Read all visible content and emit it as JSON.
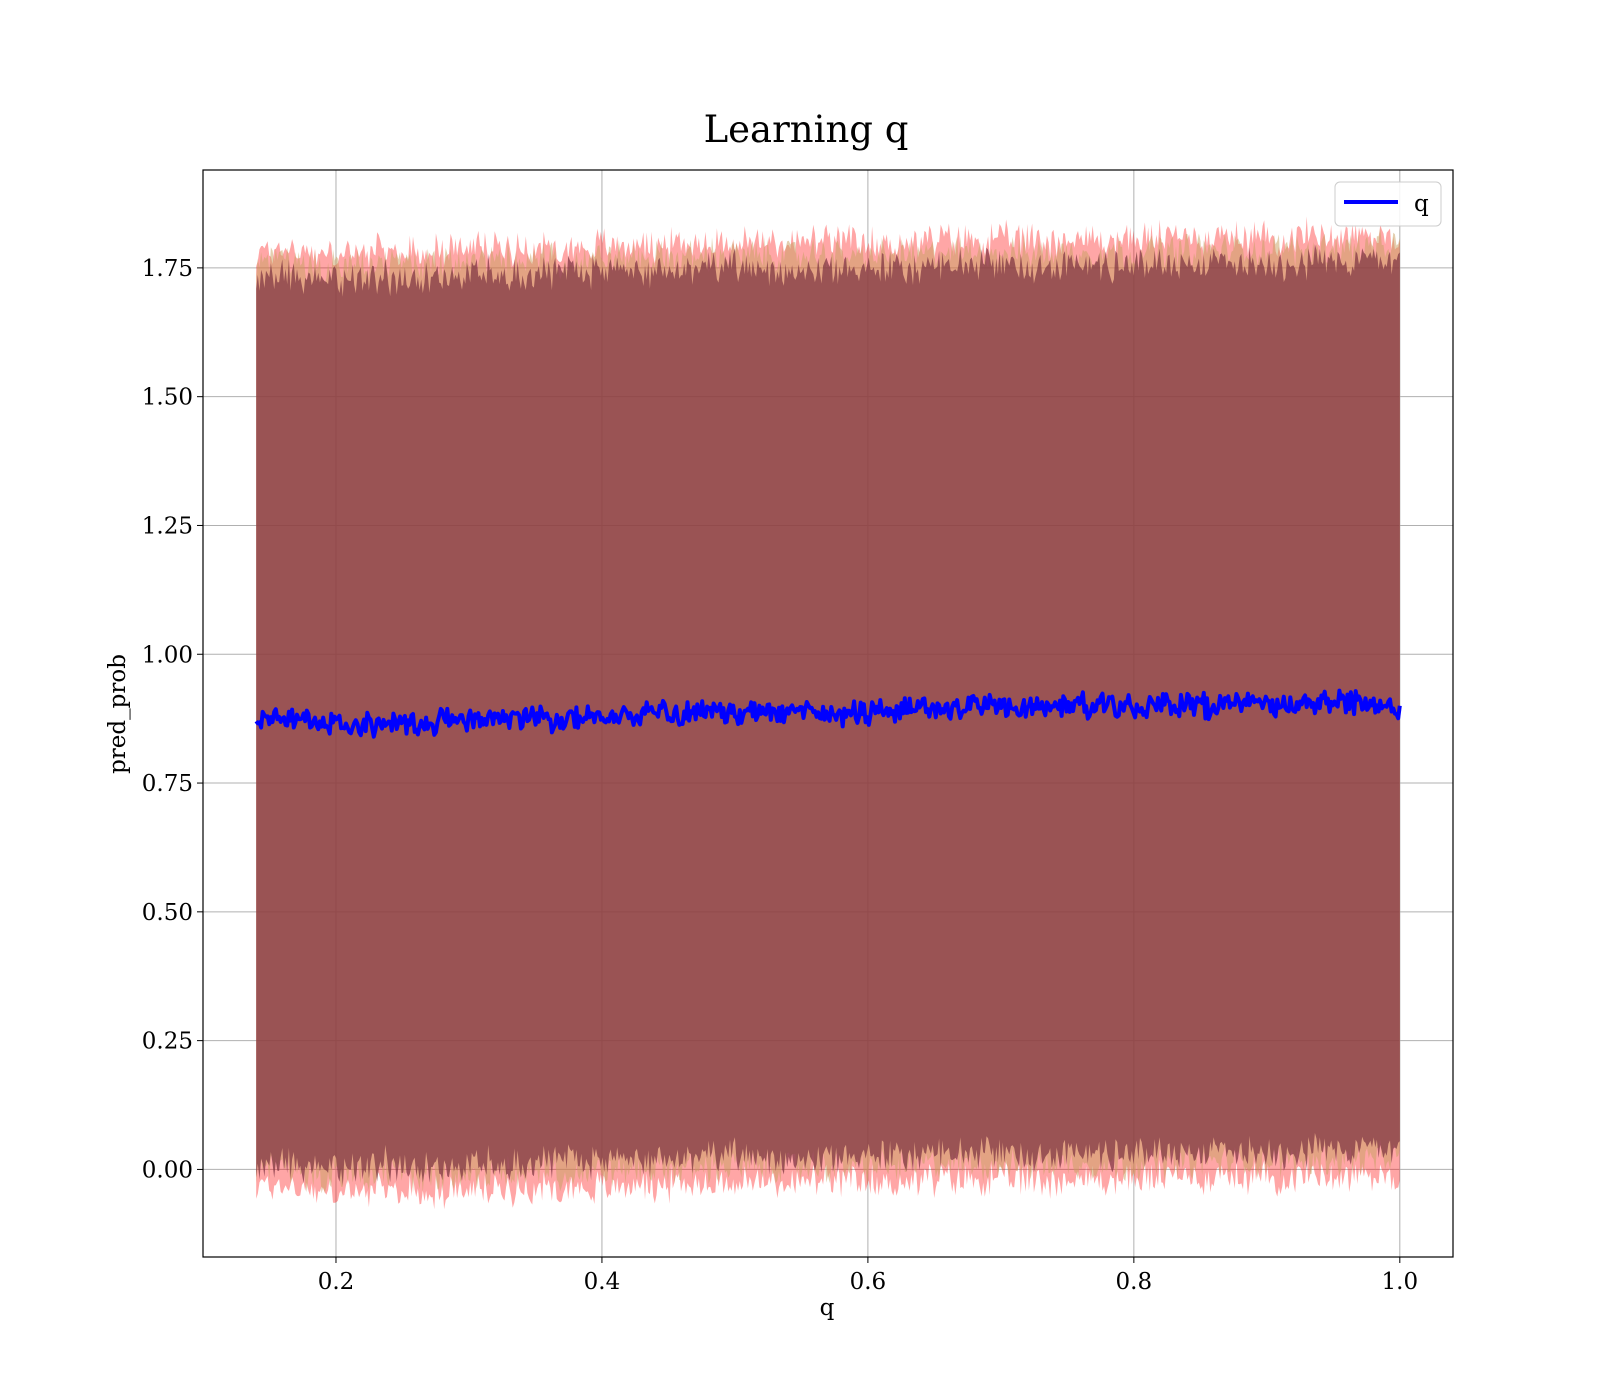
{
  "chart_data": {
    "type": "line",
    "title": "Learning q",
    "xlabel": "q",
    "ylabel": "pred_prob",
    "xlim": [
      0.1,
      1.04
    ],
    "ylim": [
      -0.17,
      1.94
    ],
    "x_ticks": [
      {
        "value": 0.2,
        "label": "0.2"
      },
      {
        "value": 0.4,
        "label": "0.4"
      },
      {
        "value": 0.6,
        "label": "0.6"
      },
      {
        "value": 0.8,
        "label": "0.8"
      },
      {
        "value": 1.0,
        "label": "1.0"
      }
    ],
    "y_ticks": [
      {
        "value": 0.0,
        "label": "0.00"
      },
      {
        "value": 0.25,
        "label": "0.25"
      },
      {
        "value": 0.5,
        "label": "0.50"
      },
      {
        "value": 0.75,
        "label": "0.75"
      },
      {
        "value": 1.0,
        "label": "1.00"
      },
      {
        "value": 1.25,
        "label": "1.25"
      },
      {
        "value": 1.5,
        "label": "1.50"
      },
      {
        "value": 1.75,
        "label": "1.75"
      }
    ],
    "grid": true,
    "legend": {
      "position": "top-right",
      "entries": [
        {
          "label": "q",
          "color": "#0000ff"
        }
      ]
    },
    "series": [
      {
        "name": "q",
        "color": "#0000ff",
        "x": [
          0.14,
          0.16,
          0.18,
          0.2,
          0.22,
          0.24,
          0.26,
          0.28,
          0.3,
          0.32,
          0.34,
          0.36,
          0.38,
          0.4,
          0.42,
          0.44,
          0.46,
          0.48,
          0.5,
          0.52,
          0.54,
          0.56,
          0.58,
          0.6,
          0.62,
          0.64,
          0.66,
          0.68,
          0.7,
          0.72,
          0.74,
          0.76,
          0.78,
          0.8,
          0.82,
          0.84,
          0.86,
          0.88,
          0.9,
          0.92,
          0.94,
          0.96,
          0.98,
          1.0
        ],
        "values": [
          0.87,
          0.875,
          0.87,
          0.865,
          0.865,
          0.87,
          0.865,
          0.87,
          0.875,
          0.875,
          0.88,
          0.875,
          0.875,
          0.88,
          0.88,
          0.885,
          0.885,
          0.89,
          0.885,
          0.89,
          0.89,
          0.89,
          0.885,
          0.885,
          0.89,
          0.895,
          0.895,
          0.9,
          0.9,
          0.895,
          0.9,
          0.9,
          0.9,
          0.895,
          0.905,
          0.9,
          0.9,
          0.905,
          0.905,
          0.9,
          0.91,
          0.905,
          0.905,
          0.9
        ]
      }
    ],
    "bands": [
      {
        "description_color": "#ff0000",
        "alpha": 0.35,
        "upper": [
          1.775,
          1.79,
          1.78,
          1.775,
          1.78,
          1.78,
          1.78,
          1.785,
          1.79,
          1.79,
          1.79,
          1.79,
          1.79,
          1.795,
          1.795,
          1.795,
          1.795,
          1.8,
          1.8,
          1.8,
          1.8,
          1.8,
          1.8,
          1.795,
          1.8,
          1.8,
          1.805,
          1.805,
          1.805,
          1.805,
          1.805,
          1.805,
          1.805,
          1.805,
          1.81,
          1.81,
          1.81,
          1.81,
          1.81,
          1.81,
          1.815,
          1.815,
          1.815,
          1.815
        ],
        "lower": [
          -0.035,
          -0.03,
          -0.04,
          -0.045,
          -0.045,
          -0.04,
          -0.045,
          -0.045,
          -0.04,
          -0.04,
          -0.035,
          -0.035,
          -0.035,
          -0.035,
          -0.03,
          -0.03,
          -0.03,
          -0.025,
          -0.025,
          -0.025,
          -0.025,
          -0.025,
          -0.025,
          -0.025,
          -0.025,
          -0.02,
          -0.02,
          -0.02,
          -0.02,
          -0.02,
          -0.02,
          -0.02,
          -0.02,
          -0.02,
          -0.015,
          -0.015,
          -0.015,
          -0.015,
          -0.015,
          -0.015,
          -0.01,
          -0.01,
          -0.01,
          -0.01
        ]
      },
      {
        "description_color": "#c8a060",
        "alpha": 0.5,
        "upper": [
          1.755,
          1.765,
          1.755,
          1.75,
          1.755,
          1.755,
          1.755,
          1.76,
          1.765,
          1.765,
          1.765,
          1.765,
          1.765,
          1.77,
          1.77,
          1.77,
          1.77,
          1.775,
          1.775,
          1.775,
          1.775,
          1.775,
          1.775,
          1.77,
          1.775,
          1.775,
          1.78,
          1.78,
          1.78,
          1.78,
          1.78,
          1.78,
          1.78,
          1.78,
          1.785,
          1.785,
          1.785,
          1.785,
          1.785,
          1.785,
          1.79,
          1.79,
          1.79,
          1.79
        ],
        "lower": [
          -0.005,
          0.0,
          -0.01,
          -0.015,
          -0.015,
          -0.01,
          -0.015,
          -0.015,
          -0.01,
          -0.01,
          -0.005,
          -0.005,
          -0.005,
          -0.005,
          0.0,
          0.0,
          0.0,
          0.005,
          0.005,
          0.005,
          0.005,
          0.005,
          0.005,
          0.005,
          0.005,
          0.01,
          0.01,
          0.01,
          0.01,
          0.01,
          0.01,
          0.01,
          0.01,
          0.01,
          0.015,
          0.015,
          0.015,
          0.015,
          0.015,
          0.015,
          0.02,
          0.02,
          0.02,
          0.02
        ]
      },
      {
        "description_color": "#7a3040",
        "alpha": 0.7,
        "upper": [
          1.73,
          1.74,
          1.73,
          1.725,
          1.73,
          1.73,
          1.73,
          1.735,
          1.74,
          1.74,
          1.74,
          1.74,
          1.74,
          1.745,
          1.745,
          1.745,
          1.745,
          1.75,
          1.75,
          1.75,
          1.75,
          1.75,
          1.75,
          1.745,
          1.75,
          1.75,
          1.755,
          1.755,
          1.755,
          1.755,
          1.755,
          1.755,
          1.755,
          1.755,
          1.76,
          1.76,
          1.76,
          1.76,
          1.76,
          1.76,
          1.765,
          1.765,
          1.765,
          1.765
        ],
        "lower": [
          0.005,
          0.015,
          0.005,
          0.0,
          0.005,
          0.01,
          0.005,
          0.005,
          0.01,
          0.01,
          0.015,
          0.015,
          0.015,
          0.015,
          0.02,
          0.02,
          0.02,
          0.025,
          0.025,
          0.025,
          0.025,
          0.025,
          0.025,
          0.025,
          0.025,
          0.03,
          0.03,
          0.03,
          0.03,
          0.03,
          0.03,
          0.03,
          0.03,
          0.03,
          0.035,
          0.035,
          0.035,
          0.035,
          0.035,
          0.035,
          0.04,
          0.04,
          0.04,
          0.04
        ]
      }
    ]
  }
}
